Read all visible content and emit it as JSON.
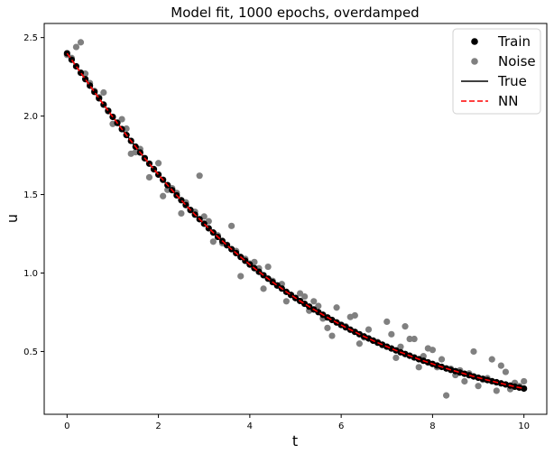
{
  "chart_data": {
    "type": "scatter",
    "title": "Model fit, 1000 epochs, overdamped",
    "xlabel": "t",
    "ylabel": "u",
    "xlim": [
      -0.5,
      10.5
    ],
    "ylim": [
      0.1,
      2.59
    ],
    "xticks": [
      "0",
      "2",
      "4",
      "6",
      "8",
      "10"
    ],
    "yticks": [
      "0.5",
      "1.0",
      "1.5",
      "2.0",
      "2.5"
    ],
    "grid": false,
    "legend_position": "top-right",
    "colors": {
      "train": "#000000",
      "noise": "#808080",
      "true": "#000000",
      "nn": "#ff0000"
    },
    "series": [
      {
        "name": "Train",
        "kind": "points",
        "x": [
          0.0,
          0.1,
          0.2,
          0.3,
          0.4,
          0.5,
          0.6,
          0.7,
          0.8,
          0.9,
          1.0,
          1.1,
          1.2,
          1.3,
          1.4,
          1.5,
          1.6,
          1.7,
          1.8,
          1.9,
          2.0,
          2.1,
          2.2,
          2.3,
          2.4,
          2.5,
          2.6,
          2.7,
          2.8,
          2.9,
          3.0,
          3.1,
          3.2,
          3.3,
          3.4,
          3.5,
          3.6,
          3.7,
          3.8,
          3.9,
          4.0,
          4.1,
          4.2,
          4.3,
          4.4,
          4.5,
          4.6,
          4.7,
          4.8,
          4.9,
          5.0,
          5.1,
          5.2,
          5.3,
          5.4,
          5.5,
          5.6,
          5.7,
          5.8,
          5.9,
          6.0,
          6.1,
          6.2,
          6.3,
          6.4,
          6.5,
          6.6,
          6.7,
          6.8,
          6.9,
          7.0,
          7.1,
          7.2,
          7.3,
          7.4,
          7.5,
          7.6,
          7.7,
          7.8,
          7.9,
          8.0,
          8.1,
          8.2,
          8.3,
          8.4,
          8.5,
          8.6,
          8.7,
          8.8,
          8.9,
          9.0,
          9.1,
          9.2,
          9.3,
          9.4,
          9.5,
          9.6,
          9.7,
          9.8,
          9.9,
          10.0
        ],
        "y": [
          2.4,
          2.359,
          2.317,
          2.276,
          2.235,
          2.194,
          2.154,
          2.113,
          2.073,
          2.034,
          1.995,
          1.956,
          1.917,
          1.879,
          1.842,
          1.805,
          1.768,
          1.732,
          1.697,
          1.662,
          1.627,
          1.594,
          1.56,
          1.528,
          1.495,
          1.464,
          1.433,
          1.402,
          1.372,
          1.343,
          1.314,
          1.285,
          1.258,
          1.23,
          1.204,
          1.177,
          1.152,
          1.127,
          1.102,
          1.078,
          1.054,
          1.031,
          1.008,
          0.986,
          0.964,
          0.942,
          0.921,
          0.901,
          0.88,
          0.861,
          0.841,
          0.822,
          0.804,
          0.786,
          0.768,
          0.751,
          0.734,
          0.717,
          0.701,
          0.685,
          0.669,
          0.654,
          0.639,
          0.625,
          0.61,
          0.596,
          0.583,
          0.569,
          0.556,
          0.544,
          0.531,
          0.519,
          0.507,
          0.495,
          0.484,
          0.473,
          0.462,
          0.451,
          0.441,
          0.431,
          0.421,
          0.411,
          0.402,
          0.392,
          0.383,
          0.375,
          0.366,
          0.358,
          0.349,
          0.341,
          0.333,
          0.326,
          0.318,
          0.311,
          0.304,
          0.297,
          0.29,
          0.283,
          0.276,
          0.27,
          0.264
        ]
      },
      {
        "name": "Noise",
        "kind": "points",
        "x": [
          0.0,
          0.1,
          0.2,
          0.3,
          0.4,
          0.5,
          0.6,
          0.7,
          0.8,
          0.9,
          1.0,
          1.1,
          1.2,
          1.3,
          1.4,
          1.5,
          1.6,
          1.7,
          1.8,
          1.9,
          2.0,
          2.1,
          2.2,
          2.3,
          2.4,
          2.5,
          2.6,
          2.7,
          2.8,
          2.9,
          3.0,
          3.1,
          3.2,
          3.3,
          3.4,
          3.5,
          3.6,
          3.7,
          3.8,
          3.9,
          4.0,
          4.1,
          4.2,
          4.3,
          4.4,
          4.5,
          4.6,
          4.7,
          4.8,
          4.9,
          5.0,
          5.1,
          5.2,
          5.3,
          5.4,
          5.5,
          5.6,
          5.7,
          5.8,
          5.9,
          6.0,
          6.1,
          6.2,
          6.3,
          6.4,
          6.5,
          6.6,
          6.7,
          6.8,
          6.9,
          7.0,
          7.1,
          7.2,
          7.3,
          7.4,
          7.5,
          7.6,
          7.7,
          7.8,
          7.9,
          8.0,
          8.1,
          8.2,
          8.3,
          8.4,
          8.5,
          8.6,
          8.7,
          8.8,
          8.9,
          9.0,
          9.1,
          9.2,
          9.3,
          9.4,
          9.5,
          9.6,
          9.7,
          9.8,
          9.9,
          10.0
        ],
        "y": [
          2.39,
          2.37,
          2.44,
          2.47,
          2.27,
          2.21,
          2.16,
          2.12,
          2.15,
          2.03,
          1.95,
          1.96,
          1.98,
          1.92,
          1.76,
          1.77,
          1.79,
          1.73,
          1.61,
          1.66,
          1.7,
          1.49,
          1.53,
          1.54,
          1.51,
          1.38,
          1.45,
          1.4,
          1.39,
          1.62,
          1.36,
          1.33,
          1.2,
          1.24,
          1.19,
          1.18,
          1.3,
          1.14,
          0.98,
          1.09,
          1.06,
          1.07,
          1.03,
          0.9,
          1.04,
          0.95,
          0.92,
          0.93,
          0.82,
          0.86,
          0.84,
          0.87,
          0.85,
          0.76,
          0.82,
          0.79,
          0.71,
          0.65,
          0.6,
          0.78,
          0.67,
          0.66,
          0.72,
          0.73,
          0.55,
          0.59,
          0.64,
          0.57,
          0.56,
          0.54,
          0.69,
          0.61,
          0.46,
          0.53,
          0.66,
          0.58,
          0.58,
          0.4,
          0.47,
          0.52,
          0.51,
          0.4,
          0.45,
          0.22,
          0.39,
          0.35,
          0.38,
          0.31,
          0.36,
          0.5,
          0.28,
          0.32,
          0.33,
          0.45,
          0.25,
          0.41,
          0.37,
          0.26,
          0.3,
          0.28,
          0.31
        ]
      },
      {
        "name": "True",
        "kind": "line"
      },
      {
        "name": "NN",
        "kind": "dashed-line"
      }
    ]
  }
}
